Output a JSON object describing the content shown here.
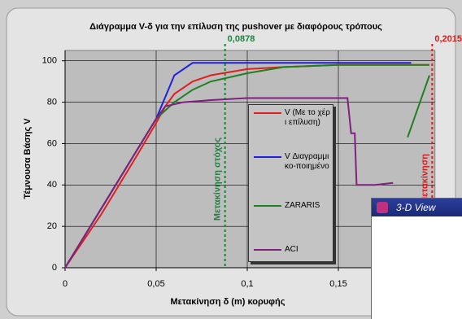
{
  "chart_data": {
    "type": "line",
    "title": "Διάγραμμα V-δ για την επίλυση της pushover με διαφόρους τρόπους",
    "x_label": "Μετακίνηση δ (m) κορυφής",
    "y_label": "Τέμνουσα Βάσης V",
    "xlim": [
      0,
      0.203
    ],
    "ylim": [
      0,
      105
    ],
    "xticks": [
      0,
      {
        "value": 0.05,
        "label": "0,05"
      },
      {
        "value": 0.1,
        "label": "0,1"
      },
      {
        "value": 0.15,
        "label": "0,15"
      }
    ],
    "yticks": [
      0,
      20,
      40,
      60,
      80,
      100
    ],
    "grid": true,
    "series": [
      {
        "name": "V (Με το χέρι επίλυση)",
        "color": "#e02020",
        "x": [
          0,
          0.02,
          0.04,
          0.05,
          0.055,
          0.06,
          0.07,
          0.08,
          0.1,
          0.12,
          0.15,
          0.2
        ],
        "values": [
          0,
          26,
          55,
          70,
          78,
          84,
          90,
          93,
          96,
          97,
          98,
          98
        ]
      },
      {
        "name": "V Διαγραμμικο-ποιημένο",
        "color": "#2020e0",
        "x": [
          0,
          0.05,
          0.06,
          0.07,
          0.1,
          0.15,
          0.19
        ],
        "values": [
          0,
          72,
          93,
          99,
          99,
          99,
          99
        ]
      },
      {
        "name": "ZARARIS",
        "color": "#208020",
        "x": [
          0,
          0.05,
          0.06,
          0.07,
          0.08,
          0.1,
          0.12,
          0.15,
          0.2,
          0.19,
          0.188,
          0.2
        ],
        "values": [
          0,
          72,
          80,
          86,
          90,
          94,
          97,
          98,
          98,
          null,
          63,
          93
        ]
      },
      {
        "name": "ACI",
        "color": "#802080",
        "x": [
          0,
          0.05,
          0.055,
          0.065,
          0.08,
          0.1,
          0.155,
          0.157,
          0.159,
          0.16,
          0.17,
          0.18
        ],
        "values": [
          0,
          72,
          78,
          80,
          81,
          82,
          82,
          65,
          65,
          40,
          40,
          41
        ]
      }
    ],
    "markers": [
      {
        "value": 0.0878,
        "label": "0,0878",
        "text": "Μετακίνηση στόχος",
        "color": "#208040"
      },
      {
        "value": 0.2015,
        "label": "0,2015",
        "text": "Μετακίνηση",
        "color": "#d02020"
      }
    ]
  },
  "window": {
    "title": "3-D View"
  }
}
